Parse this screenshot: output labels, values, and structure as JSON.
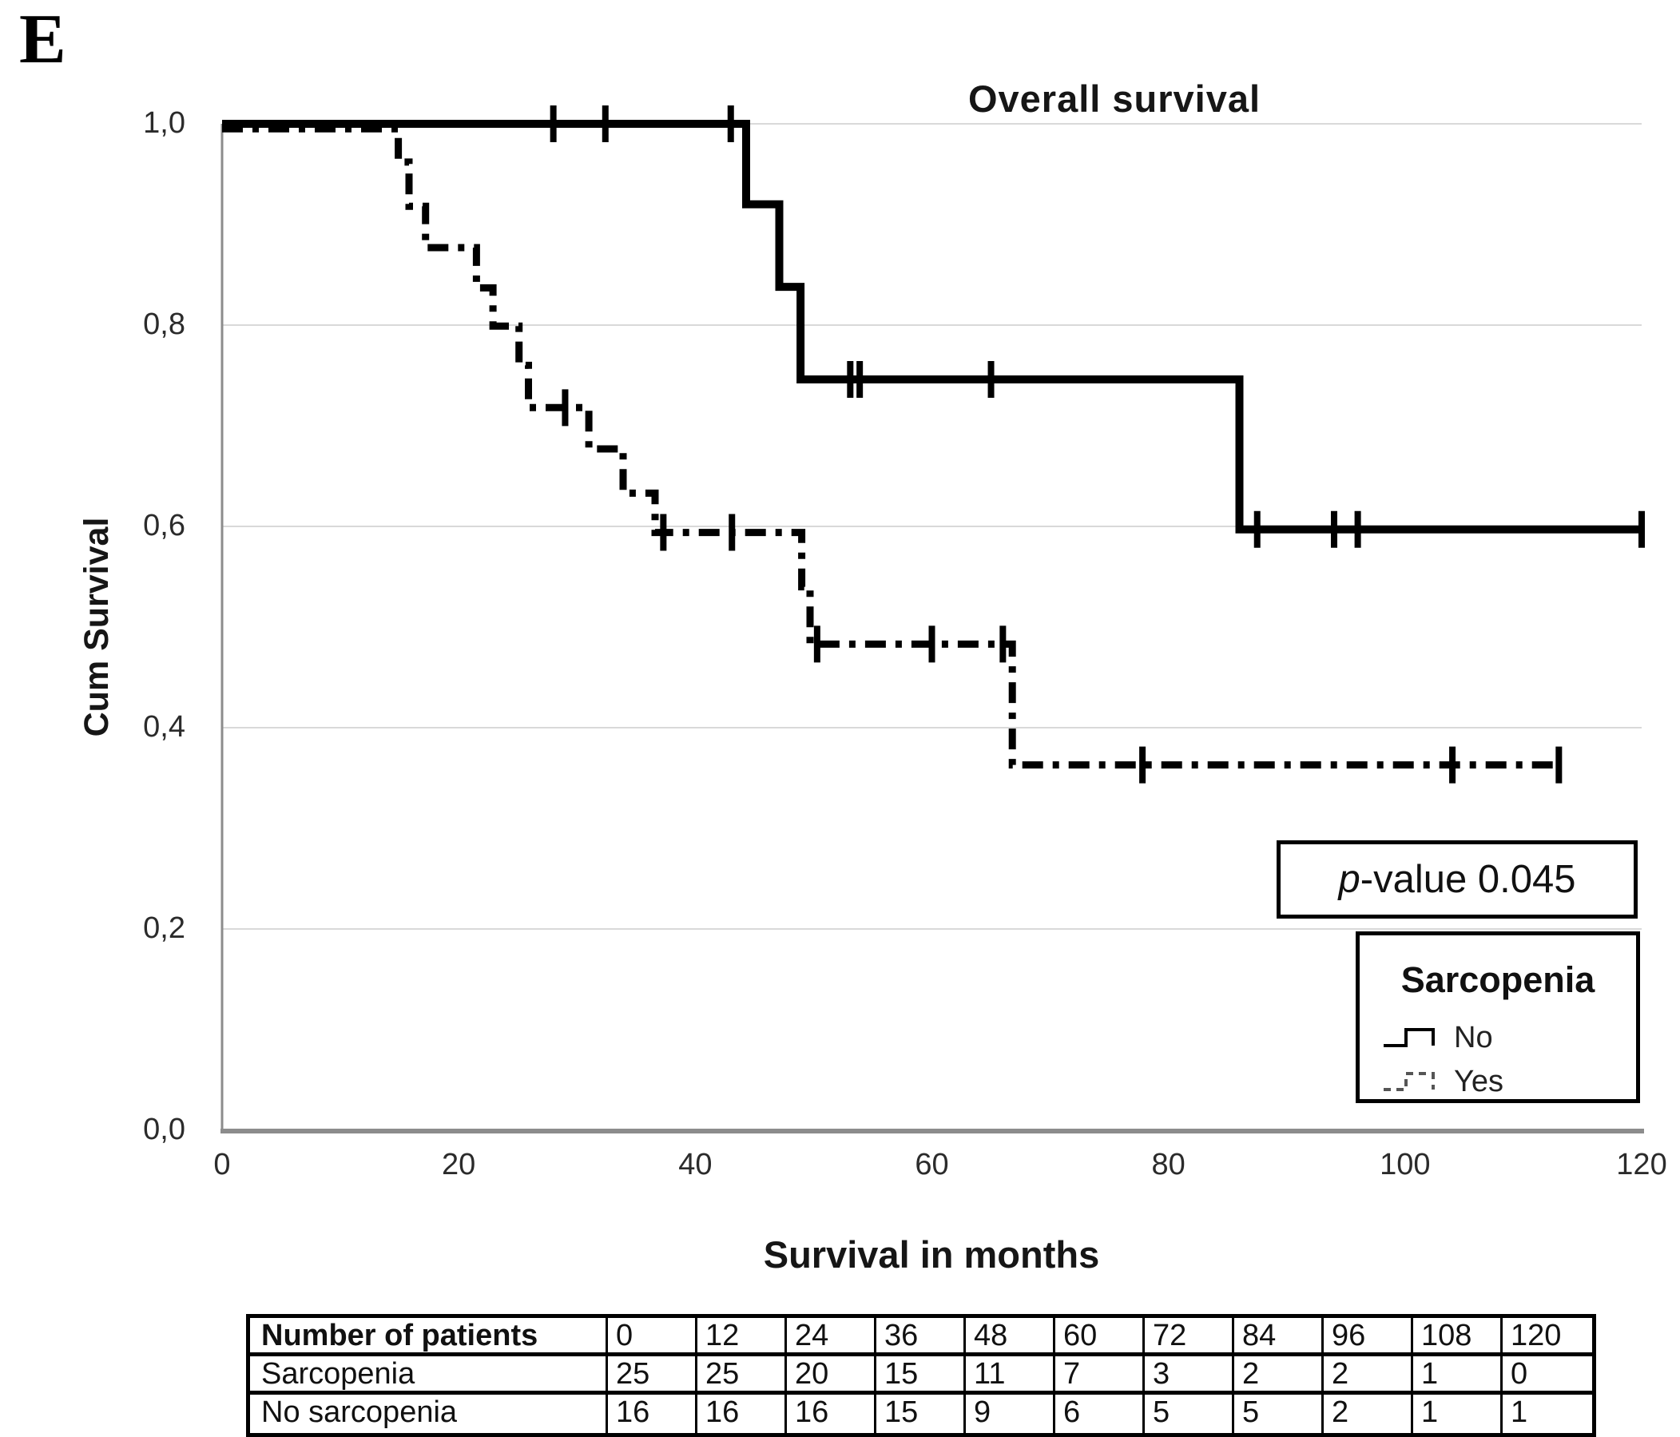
{
  "panel_label": "E",
  "chart_data": {
    "type": "line",
    "subtype": "kaplan-meier-step",
    "title": "Overall survival",
    "xlabel": "Survival in months",
    "ylabel": "Cum Survival",
    "xlim": [
      0,
      120
    ],
    "ylim": [
      0.0,
      1.0
    ],
    "grid": true,
    "x_ticks": [
      {
        "value": 0,
        "label": "0"
      },
      {
        "value": 20,
        "label": "20"
      },
      {
        "value": 40,
        "label": "40"
      },
      {
        "value": 60,
        "label": "60"
      },
      {
        "value": 80,
        "label": "80"
      },
      {
        "value": 100,
        "label": "100"
      },
      {
        "value": 120,
        "label": "120"
      }
    ],
    "y_ticks": [
      {
        "value": 0.0,
        "label": "0,0"
      },
      {
        "value": 0.2,
        "label": "0,2"
      },
      {
        "value": 0.4,
        "label": "0,4"
      },
      {
        "value": 0.6,
        "label": "0,6"
      },
      {
        "value": 0.8,
        "label": "0,8"
      },
      {
        "value": 1.0,
        "label": "1,0"
      }
    ],
    "colors": {
      "curve": "#000000",
      "grid": "#d9d9d9",
      "axis": "#8c8c8c",
      "background": "#ffffff"
    },
    "p_value": {
      "italic": "p",
      "text": "-value 0.045"
    },
    "legend": {
      "title": "Sarcopenia",
      "position": "lower right",
      "entries": [
        {
          "label": "No",
          "style": "solid"
        },
        {
          "label": "Yes",
          "style": "dashed"
        }
      ]
    },
    "series": [
      {
        "name": "No",
        "style": "solid",
        "steps": [
          [
            0,
            1.0
          ],
          [
            44.3,
            1.0
          ],
          [
            44.3,
            0.92
          ],
          [
            47.1,
            0.92
          ],
          [
            47.1,
            0.838
          ],
          [
            48.9,
            0.838
          ],
          [
            48.9,
            0.746
          ],
          [
            86.0,
            0.746
          ],
          [
            86.0,
            0.597
          ],
          [
            120,
            0.597
          ]
        ],
        "censors": [
          [
            28,
            1.0
          ],
          [
            32.4,
            1.0
          ],
          [
            43.0,
            1.0
          ],
          [
            53.1,
            0.746
          ],
          [
            53.9,
            0.746
          ],
          [
            65.0,
            0.746
          ],
          [
            87.5,
            0.597
          ],
          [
            94.0,
            0.597
          ],
          [
            96.0,
            0.597
          ],
          [
            120,
            0.597
          ]
        ]
      },
      {
        "name": "Yes",
        "style": "dashed",
        "steps": [
          [
            0,
            0.995
          ],
          [
            14.9,
            0.995
          ],
          [
            14.9,
            0.962
          ],
          [
            15.8,
            0.962
          ],
          [
            15.8,
            0.918
          ],
          [
            17.2,
            0.918
          ],
          [
            17.2,
            0.877
          ],
          [
            21.5,
            0.877
          ],
          [
            21.5,
            0.837
          ],
          [
            22.9,
            0.837
          ],
          [
            22.9,
            0.799
          ],
          [
            25.1,
            0.799
          ],
          [
            25.1,
            0.76
          ],
          [
            25.9,
            0.76
          ],
          [
            25.9,
            0.718
          ],
          [
            31.0,
            0.718
          ],
          [
            31.0,
            0.677
          ],
          [
            33.9,
            0.677
          ],
          [
            33.9,
            0.633
          ],
          [
            36.6,
            0.633
          ],
          [
            36.6,
            0.594
          ],
          [
            49.0,
            0.594
          ],
          [
            49.0,
            0.54
          ],
          [
            49.7,
            0.54
          ],
          [
            49.7,
            0.483
          ],
          [
            66.8,
            0.483
          ],
          [
            66.8,
            0.363
          ],
          [
            113,
            0.363
          ]
        ],
        "censors": [
          [
            29.0,
            0.718
          ],
          [
            37.3,
            0.594
          ],
          [
            43.1,
            0.594
          ],
          [
            50.3,
            0.483
          ],
          [
            60.0,
            0.483
          ],
          [
            66.0,
            0.483
          ],
          [
            77.8,
            0.363
          ],
          [
            104.0,
            0.363
          ],
          [
            113.0,
            0.363
          ]
        ]
      }
    ]
  },
  "risk_table": {
    "header": [
      "Number of patients",
      "0",
      "12",
      "24",
      "36",
      "48",
      "60",
      "72",
      "84",
      "96",
      "108",
      "120"
    ],
    "rows": [
      [
        "Sarcopenia",
        "25",
        "25",
        "20",
        "15",
        "11",
        "7",
        "3",
        "2",
        "2",
        "1",
        "0"
      ],
      [
        "No sarcopenia",
        "16",
        "16",
        "16",
        "15",
        "9",
        "6",
        "5",
        "5",
        "2",
        "1",
        "1"
      ]
    ]
  }
}
